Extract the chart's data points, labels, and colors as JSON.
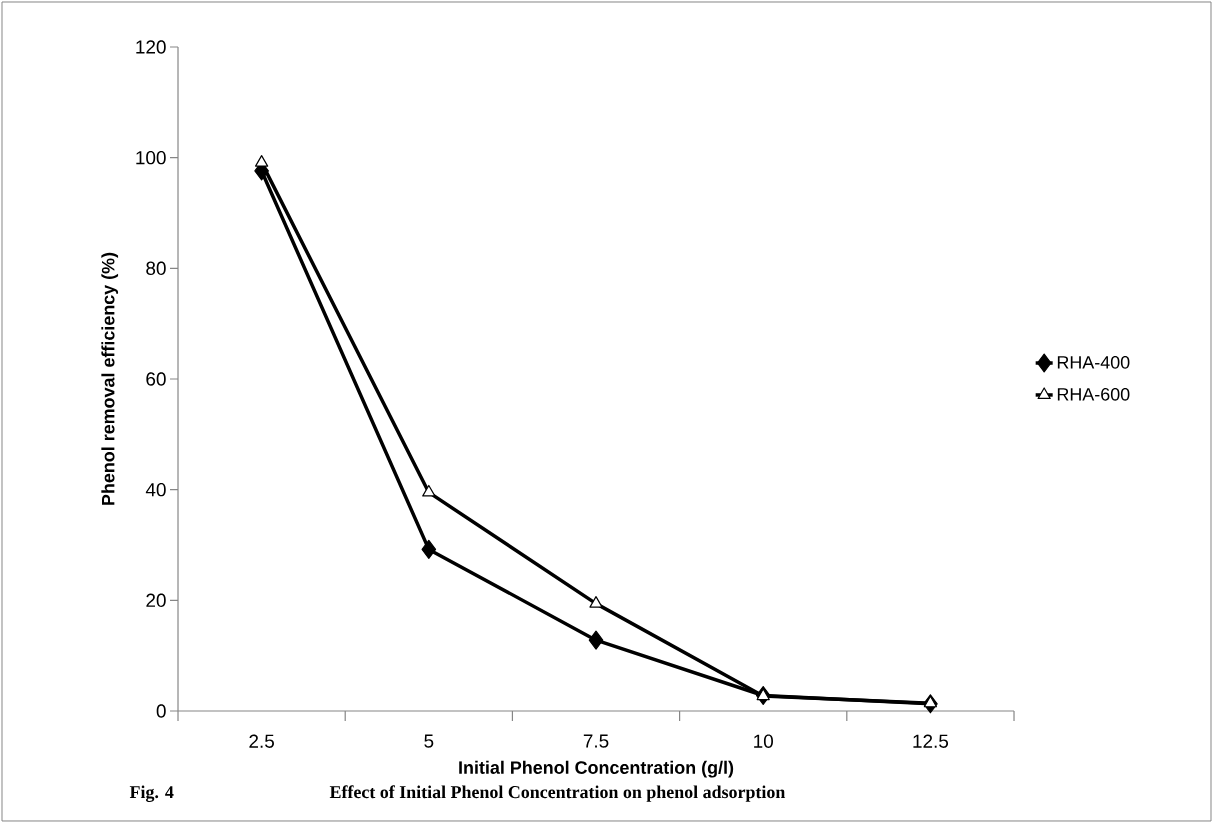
{
  "chart_data": {
    "type": "line",
    "xlabel": "Initial Phenol Concentration (g/l)",
    "ylabel": "Phenol removal efficiency (%)",
    "categories": [
      "2.5",
      "5",
      "7.5",
      "10",
      "12.5"
    ],
    "series": [
      {
        "name": "RHA-400",
        "color": "#000000",
        "marker": "diamond",
        "values": [
          97.6,
          29.2,
          12.8,
          2.8,
          1.3
        ]
      },
      {
        "name": "RHA-600",
        "color": "#000000",
        "marker": "triangle",
        "values": [
          99.1,
          39.5,
          19.4,
          2.7,
          1.4
        ]
      }
    ],
    "ylim": [
      0,
      120
    ],
    "yticks": [
      0,
      20,
      40,
      60,
      80,
      100,
      120
    ],
    "grid": false,
    "legend": "right",
    "line_style": "solid",
    "annotations": [
      "Fig. 4",
      "Effect of Initial Phenol Concentration on phenol adsorption"
    ]
  }
}
